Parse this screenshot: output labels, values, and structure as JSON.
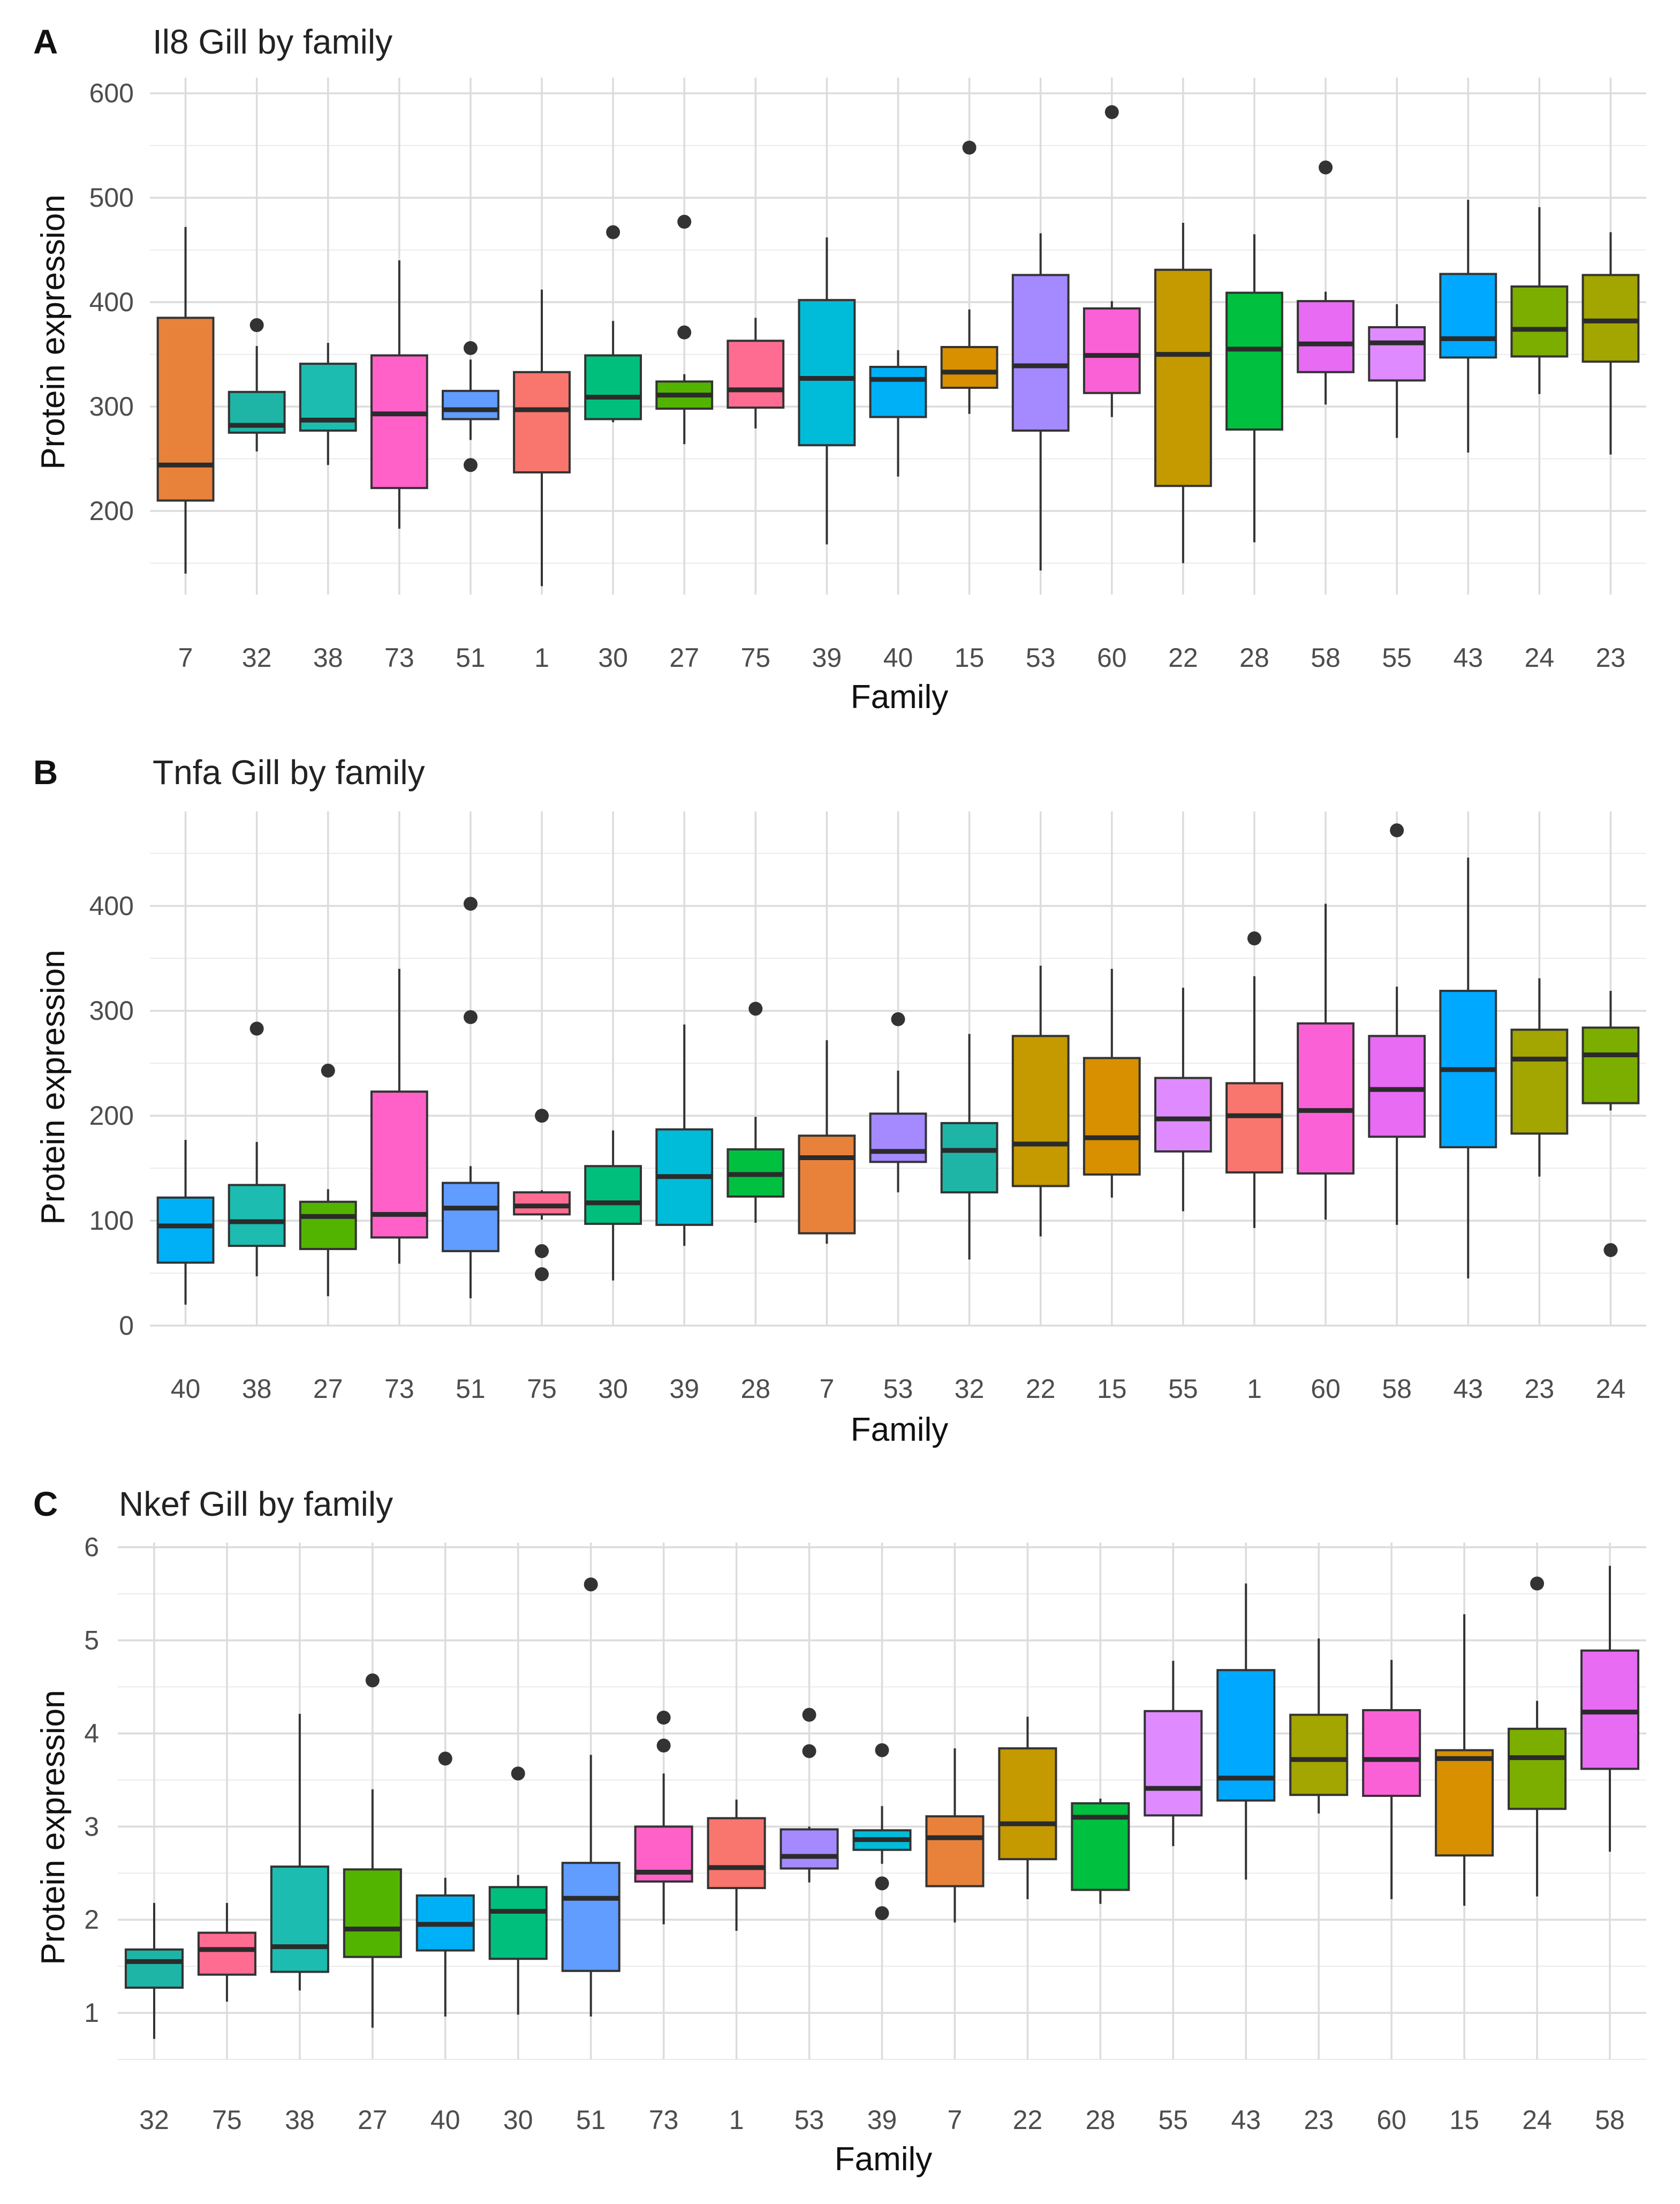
{
  "chart_data": [
    {
      "type": "boxplot",
      "panel": "A",
      "title": "Il8 Gill by family",
      "xlabel": "Family",
      "ylabel": "Protein expression",
      "ylim": [
        120,
        615
      ],
      "yticks": [
        200,
        300,
        400,
        500,
        600
      ],
      "grid": true,
      "categories": [
        "7",
        "32",
        "38",
        "73",
        "51",
        "1",
        "30",
        "27",
        "75",
        "39",
        "40",
        "15",
        "53",
        "60",
        "22",
        "28",
        "58",
        "55",
        "43",
        "24",
        "23"
      ],
      "boxes": [
        {
          "q1": 210,
          "median": 244,
          "q3": 385,
          "whislo": 140,
          "whishi": 472,
          "fliers": [],
          "color": "#E8823A"
        },
        {
          "q1": 275,
          "median": 282,
          "q3": 314,
          "whislo": 257,
          "whishi": 358,
          "fliers": [
            378
          ],
          "color": "#1FB5A6"
        },
        {
          "q1": 277,
          "median": 287,
          "q3": 341,
          "whislo": 244,
          "whishi": 361,
          "fliers": [],
          "color": "#1CBDB0"
        },
        {
          "q1": 222,
          "median": 293,
          "q3": 349,
          "whislo": 183,
          "whishi": 440,
          "fliers": [],
          "color": "#FF61C9"
        },
        {
          "q1": 288,
          "median": 297,
          "q3": 315,
          "whislo": 268,
          "whishi": 345,
          "fliers": [
            356,
            244
          ],
          "color": "#619CFF"
        },
        {
          "q1": 237,
          "median": 297,
          "q3": 333,
          "whislo": 128,
          "whishi": 412,
          "fliers": [],
          "color": "#F8766D"
        },
        {
          "q1": 288,
          "median": 309,
          "q3": 349,
          "whislo": 285,
          "whishi": 382,
          "fliers": [
            467
          ],
          "color": "#00BF7D"
        },
        {
          "q1": 298,
          "median": 311,
          "q3": 324,
          "whislo": 264,
          "whishi": 331,
          "fliers": [
            477,
            371
          ],
          "color": "#53B400"
        },
        {
          "q1": 299,
          "median": 316,
          "q3": 363,
          "whislo": 279,
          "whishi": 385,
          "fliers": [],
          "color": "#FF6C91"
        },
        {
          "q1": 263,
          "median": 327,
          "q3": 402,
          "whislo": 168,
          "whishi": 462,
          "fliers": [],
          "color": "#00BCD8"
        },
        {
          "q1": 290,
          "median": 326,
          "q3": 338,
          "whislo": 233,
          "whishi": 354,
          "fliers": [],
          "color": "#00B0F6"
        },
        {
          "q1": 318,
          "median": 333,
          "q3": 357,
          "whislo": 293,
          "whishi": 393,
          "fliers": [
            548
          ],
          "color": "#D89000"
        },
        {
          "q1": 277,
          "median": 339,
          "q3": 426,
          "whislo": 143,
          "whishi": 466,
          "fliers": [],
          "color": "#A58AFF"
        },
        {
          "q1": 313,
          "median": 349,
          "q3": 394,
          "whislo": 290,
          "whishi": 401,
          "fliers": [
            582
          ],
          "color": "#FB61D7"
        },
        {
          "q1": 224,
          "median": 350,
          "q3": 431,
          "whislo": 150,
          "whishi": 476,
          "fliers": [],
          "color": "#C49A00"
        },
        {
          "q1": 278,
          "median": 355,
          "q3": 409,
          "whislo": 170,
          "whishi": 465,
          "fliers": [],
          "color": "#00C040"
        },
        {
          "q1": 333,
          "median": 360,
          "q3": 401,
          "whislo": 302,
          "whishi": 410,
          "fliers": [
            529
          ],
          "color": "#E76BF3"
        },
        {
          "q1": 325,
          "median": 361,
          "q3": 376,
          "whislo": 270,
          "whishi": 398,
          "fliers": [],
          "color": "#DF8BFF"
        },
        {
          "q1": 347,
          "median": 365,
          "q3": 427,
          "whislo": 256,
          "whishi": 498,
          "fliers": [],
          "color": "#00A9FF"
        },
        {
          "q1": 348,
          "median": 374,
          "q3": 415,
          "whislo": 312,
          "whishi": 491,
          "fliers": [],
          "color": "#7CAE00"
        },
        {
          "q1": 343,
          "median": 382,
          "q3": 426,
          "whislo": 254,
          "whishi": 467,
          "fliers": [],
          "color": "#A3A500"
        }
      ]
    },
    {
      "type": "boxplot",
      "panel": "B",
      "title": "Tnfa Gill by family",
      "xlabel": "Family",
      "ylabel": "Protein expression",
      "ylim": [
        0,
        490
      ],
      "yticks": [
        0,
        100,
        200,
        300,
        400
      ],
      "grid": true,
      "categories": [
        "40",
        "38",
        "27",
        "73",
        "51",
        "75",
        "30",
        "39",
        "28",
        "7",
        "53",
        "32",
        "22",
        "15",
        "55",
        "1",
        "60",
        "58",
        "43",
        "23",
        "24"
      ],
      "boxes": [
        {
          "q1": 60,
          "median": 95,
          "q3": 122,
          "whislo": 20,
          "whishi": 177,
          "fliers": [],
          "color": "#00B0F6"
        },
        {
          "q1": 76,
          "median": 99,
          "q3": 134,
          "whislo": 47,
          "whishi": 175,
          "fliers": [
            283
          ],
          "color": "#1CBDB0"
        },
        {
          "q1": 73,
          "median": 104,
          "q3": 118,
          "whislo": 28,
          "whishi": 130,
          "fliers": [
            243
          ],
          "color": "#53B400"
        },
        {
          "q1": 84,
          "median": 106,
          "q3": 223,
          "whislo": 59,
          "whishi": 340,
          "fliers": [],
          "color": "#FF61C9"
        },
        {
          "q1": 71,
          "median": 112,
          "q3": 136,
          "whislo": 26,
          "whishi": 152,
          "fliers": [
            402,
            294
          ],
          "color": "#619CFF"
        },
        {
          "q1": 106,
          "median": 114,
          "q3": 127,
          "whislo": 101,
          "whishi": 129,
          "fliers": [
            200,
            71,
            49
          ],
          "color": "#FF6C91"
        },
        {
          "q1": 97,
          "median": 117,
          "q3": 152,
          "whislo": 43,
          "whishi": 186,
          "fliers": [],
          "color": "#00BF7D"
        },
        {
          "q1": 96,
          "median": 142,
          "q3": 187,
          "whislo": 76,
          "whishi": 287,
          "fliers": [],
          "color": "#00BCD8"
        },
        {
          "q1": 123,
          "median": 144,
          "q3": 168,
          "whislo": 98,
          "whishi": 199,
          "fliers": [
            302
          ],
          "color": "#00C040"
        },
        {
          "q1": 88,
          "median": 160,
          "q3": 181,
          "whislo": 78,
          "whishi": 272,
          "fliers": [],
          "color": "#E8823A"
        },
        {
          "q1": 156,
          "median": 166,
          "q3": 202,
          "whislo": 127,
          "whishi": 243,
          "fliers": [
            292
          ],
          "color": "#A58AFF"
        },
        {
          "q1": 127,
          "median": 167,
          "q3": 193,
          "whislo": 63,
          "whishi": 278,
          "fliers": [],
          "color": "#1FB5A6"
        },
        {
          "q1": 133,
          "median": 173,
          "q3": 276,
          "whislo": 85,
          "whishi": 343,
          "fliers": [],
          "color": "#C49A00"
        },
        {
          "q1": 144,
          "median": 179,
          "q3": 255,
          "whislo": 122,
          "whishi": 340,
          "fliers": [],
          "color": "#D89000"
        },
        {
          "q1": 166,
          "median": 197,
          "q3": 236,
          "whislo": 109,
          "whishi": 322,
          "fliers": [],
          "color": "#DF8BFF"
        },
        {
          "q1": 146,
          "median": 200,
          "q3": 231,
          "whislo": 93,
          "whishi": 333,
          "fliers": [
            369
          ],
          "color": "#F8766D"
        },
        {
          "q1": 145,
          "median": 205,
          "q3": 288,
          "whislo": 101,
          "whishi": 402,
          "fliers": [],
          "color": "#FB61D7"
        },
        {
          "q1": 180,
          "median": 225,
          "q3": 276,
          "whislo": 96,
          "whishi": 323,
          "fliers": [
            472
          ],
          "color": "#E76BF3"
        },
        {
          "q1": 170,
          "median": 244,
          "q3": 319,
          "whislo": 45,
          "whishi": 446,
          "fliers": [],
          "color": "#00A9FF"
        },
        {
          "q1": 183,
          "median": 254,
          "q3": 282,
          "whislo": 142,
          "whishi": 331,
          "fliers": [],
          "color": "#A3A500"
        },
        {
          "q1": 212,
          "median": 258,
          "q3": 284,
          "whislo": 205,
          "whishi": 319,
          "fliers": [
            72
          ],
          "color": "#7CAE00"
        }
      ]
    },
    {
      "type": "boxplot",
      "panel": "C",
      "title": "Nkef Gill by family",
      "xlabel": "Family",
      "ylabel": "Protein expression",
      "ylim": [
        0.5,
        6.05
      ],
      "yticks": [
        1,
        2,
        3,
        4,
        5,
        6
      ],
      "grid": true,
      "categories": [
        "32",
        "75",
        "38",
        "27",
        "40",
        "30",
        "51",
        "73",
        "1",
        "53",
        "39",
        "7",
        "22",
        "28",
        "55",
        "43",
        "23",
        "60",
        "15",
        "24",
        "58"
      ],
      "boxes": [
        {
          "q1": 1.27,
          "median": 1.55,
          "q3": 1.68,
          "whislo": 0.72,
          "whishi": 2.18,
          "fliers": [],
          "color": "#1FB5A6"
        },
        {
          "q1": 1.41,
          "median": 1.68,
          "q3": 1.86,
          "whislo": 1.12,
          "whishi": 2.18,
          "fliers": [],
          "color": "#FF6C91"
        },
        {
          "q1": 1.44,
          "median": 1.71,
          "q3": 2.57,
          "whislo": 1.24,
          "whishi": 4.21,
          "fliers": [],
          "color": "#1CBDB0"
        },
        {
          "q1": 1.6,
          "median": 1.9,
          "q3": 2.54,
          "whislo": 0.84,
          "whishi": 3.4,
          "fliers": [
            4.57
          ],
          "color": "#53B400"
        },
        {
          "q1": 1.67,
          "median": 1.95,
          "q3": 2.26,
          "whislo": 0.96,
          "whishi": 2.45,
          "fliers": [
            3.73
          ],
          "color": "#00B0F6"
        },
        {
          "q1": 1.58,
          "median": 2.09,
          "q3": 2.35,
          "whislo": 0.98,
          "whishi": 2.48,
          "fliers": [
            3.57
          ],
          "color": "#00BF7D"
        },
        {
          "q1": 1.45,
          "median": 2.23,
          "q3": 2.61,
          "whislo": 0.96,
          "whishi": 3.77,
          "fliers": [
            5.6
          ],
          "color": "#619CFF"
        },
        {
          "q1": 2.41,
          "median": 2.51,
          "q3": 3.0,
          "whislo": 1.95,
          "whishi": 3.57,
          "fliers": [
            4.17,
            3.87
          ],
          "color": "#FF61C9"
        },
        {
          "q1": 2.34,
          "median": 2.56,
          "q3": 3.09,
          "whislo": 1.88,
          "whishi": 3.29,
          "fliers": [],
          "color": "#F8766D"
        },
        {
          "q1": 2.55,
          "median": 2.68,
          "q3": 2.97,
          "whislo": 2.4,
          "whishi": 3.0,
          "fliers": [
            4.2,
            3.81
          ],
          "color": "#A58AFF"
        },
        {
          "q1": 2.75,
          "median": 2.86,
          "q3": 2.96,
          "whislo": 2.6,
          "whishi": 3.22,
          "fliers": [
            3.82,
            2.39,
            2.07
          ],
          "color": "#00BCD8"
        },
        {
          "q1": 2.36,
          "median": 2.88,
          "q3": 3.11,
          "whislo": 1.97,
          "whishi": 3.84,
          "fliers": [],
          "color": "#E8823A"
        },
        {
          "q1": 2.65,
          "median": 3.03,
          "q3": 3.84,
          "whislo": 2.22,
          "whishi": 4.18,
          "fliers": [],
          "color": "#C49A00"
        },
        {
          "q1": 2.32,
          "median": 3.1,
          "q3": 3.25,
          "whislo": 2.17,
          "whishi": 3.3,
          "fliers": [],
          "color": "#00C040"
        },
        {
          "q1": 3.12,
          "median": 3.41,
          "q3": 4.24,
          "whislo": 2.79,
          "whishi": 4.78,
          "fliers": [],
          "color": "#DF8BFF"
        },
        {
          "q1": 3.28,
          "median": 3.52,
          "q3": 4.68,
          "whislo": 2.43,
          "whishi": 5.61,
          "fliers": [],
          "color": "#00A9FF"
        },
        {
          "q1": 3.34,
          "median": 3.72,
          "q3": 4.2,
          "whislo": 3.14,
          "whishi": 5.02,
          "fliers": [],
          "color": "#A3A500"
        },
        {
          "q1": 3.33,
          "median": 3.72,
          "q3": 4.25,
          "whislo": 2.22,
          "whishi": 4.79,
          "fliers": [],
          "color": "#FB61D7"
        },
        {
          "q1": 2.69,
          "median": 3.73,
          "q3": 3.82,
          "whislo": 2.15,
          "whishi": 5.28,
          "fliers": [],
          "color": "#D89000"
        },
        {
          "q1": 3.19,
          "median": 3.74,
          "q3": 4.05,
          "whislo": 2.25,
          "whishi": 4.35,
          "fliers": [
            5.61
          ],
          "color": "#7CAE00"
        },
        {
          "q1": 3.62,
          "median": 4.23,
          "q3": 4.89,
          "whislo": 2.73,
          "whishi": 5.8,
          "fliers": [],
          "color": "#E76BF3"
        }
      ]
    }
  ]
}
